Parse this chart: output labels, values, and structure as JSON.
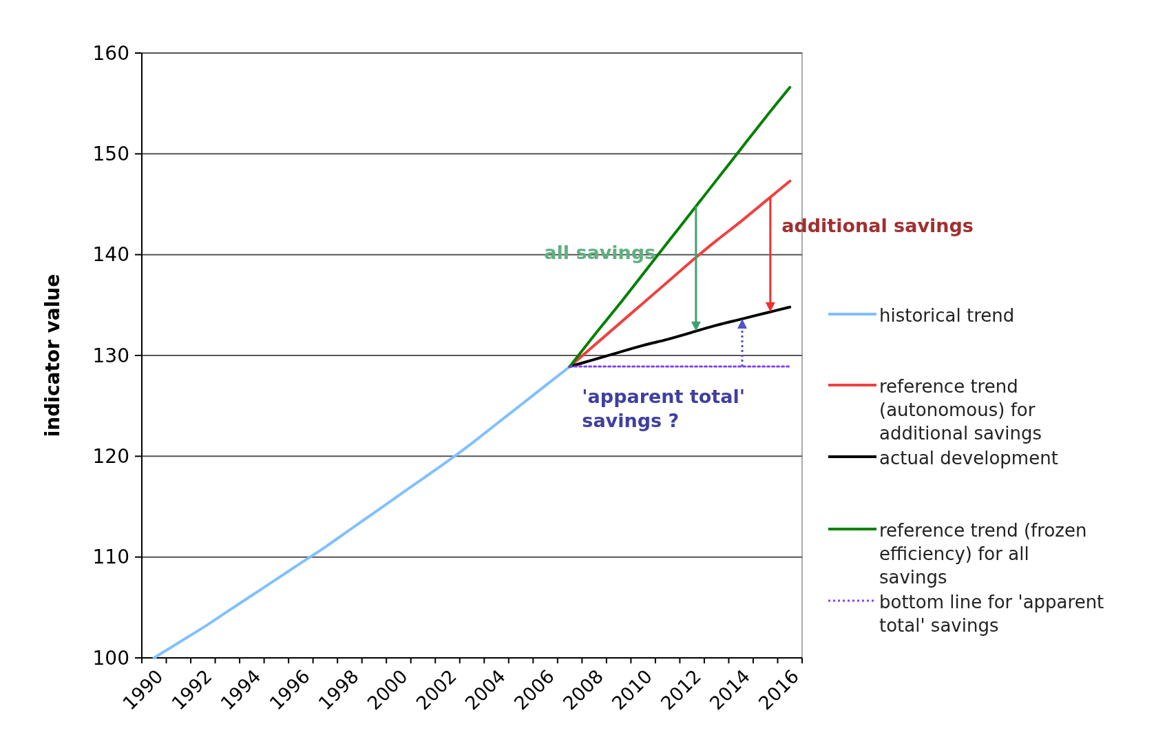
{
  "chart_data": {
    "type": "line",
    "ylabel": "indicator value",
    "categories": [
      "1990",
      null,
      "1992",
      null,
      "1994",
      null,
      "1996",
      null,
      "1998",
      null,
      "2000",
      null,
      "2002",
      null,
      "2004",
      null,
      "2006",
      null,
      "2008",
      null,
      "2010",
      null,
      "2012",
      null,
      "2014",
      null,
      "2016"
    ],
    "series": [
      {
        "name": "historical trend",
        "color": "#80c0ff",
        "values": [
          100,
          101.5,
          103.0,
          104.6,
          106.2,
          107.8,
          109.4,
          111.0,
          112.7,
          114.4,
          116.1,
          117.8,
          119.5,
          121.3,
          123.2,
          125.1,
          127.0,
          128.9,
          null,
          null,
          null,
          null,
          null,
          null,
          null,
          null,
          null
        ]
      },
      {
        "name": "reference trend (autonomous) for additional savings",
        "color": "#f04040",
        "values": [
          null,
          null,
          null,
          null,
          null,
          null,
          null,
          null,
          null,
          null,
          null,
          null,
          null,
          null,
          null,
          null,
          null,
          128.9,
          131.0,
          133.1,
          135.2,
          137.3,
          139.4,
          141.4,
          143.3,
          145.3,
          147.3
        ]
      },
      {
        "name": "actual development",
        "color": "#000000",
        "values": [
          null,
          null,
          null,
          null,
          null,
          null,
          null,
          null,
          null,
          null,
          null,
          null,
          null,
          null,
          null,
          null,
          null,
          128.9,
          129.6,
          130.3,
          131.0,
          131.6,
          132.3,
          133.0,
          133.6,
          134.2,
          134.8
        ]
      },
      {
        "name": "reference trend (frozen efficiency) for all savings",
        "color": "#008000",
        "values": [
          null,
          null,
          null,
          null,
          null,
          null,
          null,
          null,
          null,
          null,
          null,
          null,
          null,
          null,
          null,
          null,
          null,
          128.9,
          132.0,
          135.0,
          138.1,
          141.2,
          144.3,
          147.4,
          150.5,
          153.6,
          156.6
        ]
      },
      {
        "name": "bottom line for 'apparent total' savings",
        "color": "#8040ff",
        "line_style": "dotted",
        "values": [
          null,
          null,
          null,
          null,
          null,
          null,
          null,
          null,
          null,
          null,
          null,
          null,
          null,
          null,
          null,
          null,
          null,
          128.9,
          128.9,
          128.9,
          128.9,
          128.9,
          128.9,
          128.9,
          128.9,
          128.9,
          128.9
        ]
      }
    ],
    "ylim": [
      100,
      160
    ],
    "yticks": [
      100,
      110,
      120,
      130,
      140,
      150,
      160
    ],
    "grid": "y",
    "legend": "right",
    "line_style": "solid",
    "annotations": [
      "all savings",
      "additional savings",
      "'apparent total' savings ?"
    ]
  }
}
